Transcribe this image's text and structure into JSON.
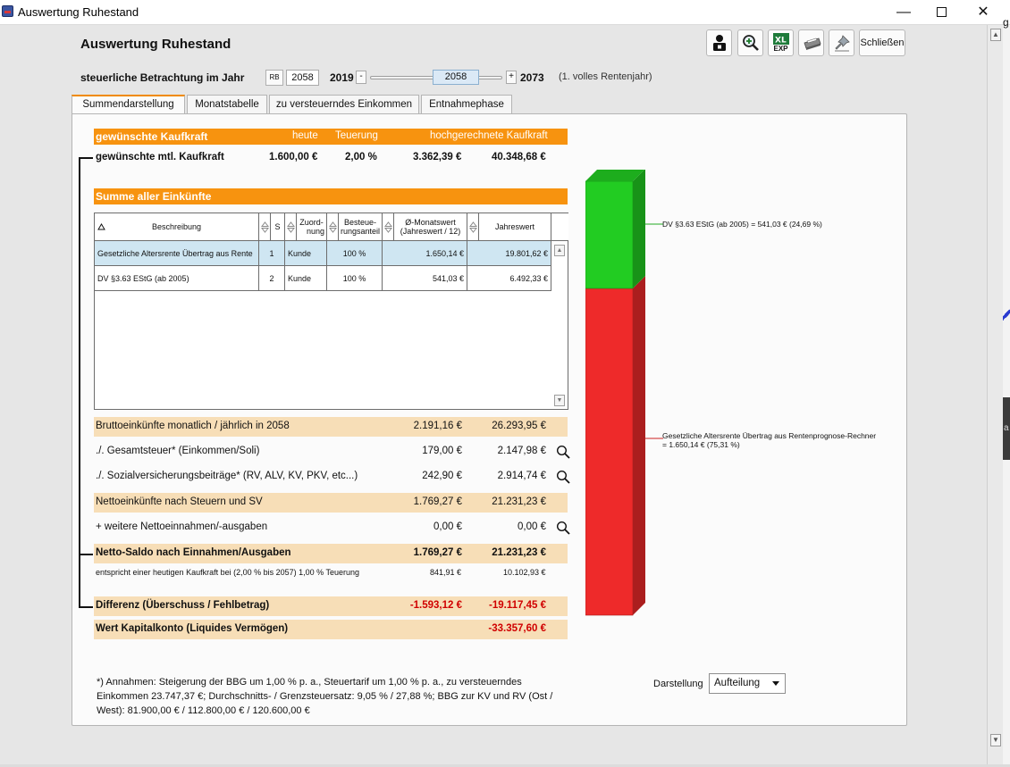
{
  "window": {
    "title": "Auswertung Ruhestand"
  },
  "header": {
    "title": "Auswertung Ruhestand",
    "close_label": "Schließen",
    "export_label": "EXP"
  },
  "year": {
    "label": "steuerliche Betrachtung im Jahr",
    "rb": "RB",
    "value": "2058",
    "min": "2019",
    "max": "2073",
    "slider_value": "2058",
    "minus": "-",
    "plus": "+",
    "note": "(1. volles Rentenjahr)"
  },
  "tabs": [
    {
      "label": "Summendarstellung"
    },
    {
      "label": "Monatstabelle"
    },
    {
      "label": "zu versteuerndes Einkommen"
    },
    {
      "label": "Entnahmephase"
    }
  ],
  "kaufkraft": {
    "header": "gewünschte Kaufkraft",
    "col_heute": "heute",
    "col_teuerung": "Teuerung",
    "col_hoch": "hochgerechnete Kaufkraft",
    "row_label": "gewünschte mtl. Kaufkraft",
    "heute": "1.600,00 €",
    "teuerung": "2,00 %",
    "monat": "3.362,39 €",
    "jahr": "40.348,68 €"
  },
  "einkuenfte": {
    "header": "Summe aller Einkünfte",
    "columns": {
      "beschreibung": "Beschreibung",
      "s": "S",
      "zuordnung_1": "Zuord-",
      "zuordnung_2": "nung",
      "besteuerung_1": "Besteue-",
      "besteuerung_2": "rungsanteil",
      "monatswert_1": "Ø-Monatswert",
      "monatswert_2": "(Jahreswert / 12)",
      "jahreswert": "Jahreswert"
    },
    "rows": [
      {
        "beschreibung": "Gesetzliche Altersrente Übertrag aus Rente",
        "s": "1",
        "zuordnung": "Kunde",
        "anteil": "100 %",
        "monat": "1.650,14 €",
        "jahr": "19.801,62 €"
      },
      {
        "beschreibung": "DV §3.63 EStG (ab 2005)",
        "s": "2",
        "zuordnung": "Kunde",
        "anteil": "100 %",
        "monat": "541,03 €",
        "jahr": "6.492,33 €"
      }
    ]
  },
  "summary": {
    "brutto": {
      "label": "Bruttoeinkünfte  monatlich / jährlich in 2058",
      "monat": "2.191,16 €",
      "jahr": "26.293,95 €"
    },
    "steuer": {
      "label": "./. Gesamtsteuer* (Einkommen/Soli)",
      "monat": "179,00 €",
      "jahr": "2.147,98 €"
    },
    "sv": {
      "label": "./. Sozialversicherungsbeiträge* (RV, ALV, KV, PKV, etc...)",
      "monat": "242,90 €",
      "jahr": "2.914,74 €"
    },
    "netto": {
      "label": "Nettoeinkünfte nach Steuern und SV",
      "monat": "1.769,27 €",
      "jahr": "21.231,23 €"
    },
    "weitere": {
      "label": "+ weitere Nettoeinnahmen/-ausgaben",
      "monat": "0,00 €",
      "jahr": "0,00 €"
    },
    "saldo": {
      "label": "Netto-Saldo nach Einnahmen/Ausgaben",
      "monat": "1.769,27 €",
      "jahr": "21.231,23 €"
    },
    "heutig": {
      "label": "entspricht einer heutigen Kaufkraft bei (2,00 % bis 2057) 1,00 % Teuerung",
      "monat": "841,91 €",
      "jahr": "10.102,93 €"
    },
    "differenz": {
      "label": "Differenz (Überschuss / Fehlbetrag)",
      "monat": "-1.593,12 €",
      "jahr": "-19.117,45 €"
    },
    "kapital": {
      "label": "Wert Kapitalkonto (Liquides Vermögen)",
      "jahr": "-33.357,60 €"
    }
  },
  "chart_data": {
    "type": "bar",
    "stacked": true,
    "series": [
      {
        "value": 541.03,
        "share_pct": 24.69,
        "color": "#22cc22"
      },
      {
        "value": 1650.14,
        "share_pct": 75.31,
        "color": "#ee2a2a"
      }
    ],
    "labels": [
      "DV §3.63 EStG (ab 2005) = 541,03 € (24,69 %)",
      "Gesetzliche Altersrente Übertrag aus Rentenprognose-Rechner",
      "= 1.650,14 € (75,31 %)"
    ]
  },
  "footnote": "*) Annahmen: Steigerung der BBG um 1,00 % p. a., Steuertarif um 1,00 % p. a., zu versteuerndes Einkommen 23.747,37 €; Durchschnitts- / Grenzsteuersatz: 9,05 % / 27,88 %; BBG zur KV und RV (Ost / West): 81.900,00 € / 112.800,00 € / 120.600,00 €",
  "darstellung": {
    "label": "Darstellung",
    "value": "Aufteilung"
  },
  "background_fragments": {
    "top": "g",
    "mid": "a"
  }
}
